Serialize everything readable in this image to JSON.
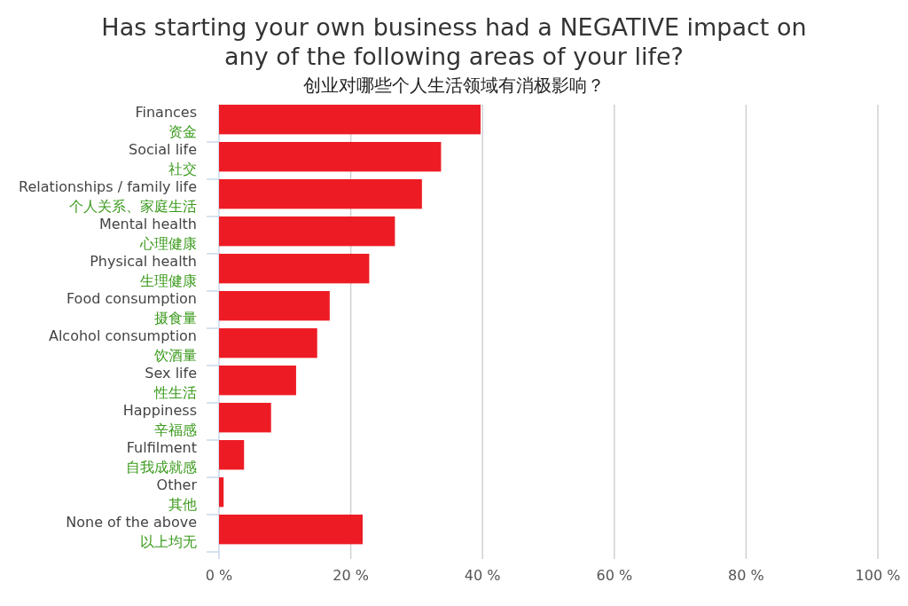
{
  "chart_data": {
    "type": "bar",
    "orientation": "horizontal",
    "title": "Has starting your own business had a NEGATIVE impact on\nany of the following areas of your life?",
    "subtitle": "创业对哪些个人生活领域有消极影响？",
    "categories": [
      "Finances\n资金",
      "Social life\n社交",
      "Relationships / family life\n个人关系、家庭生活",
      "Mental health\n心理健康",
      "Physical health\n生理健康",
      "Food consumption\n摄食量",
      "Alcohol consumption\n饮酒量",
      "Sex life\n性生活",
      "Happiness\n辛福感",
      "Fulfilment\n自我成就感",
      "Other\n其他",
      "None of the above\n以上均无"
    ],
    "values": [
      39.7,
      33.7,
      30.8,
      26.7,
      22.8,
      16.8,
      14.9,
      11.7,
      7.9,
      3.8,
      0.7,
      21.8
    ],
    "color": "#ed1c24",
    "xlim": [
      0,
      100
    ],
    "xticks": [
      {
        "value": 0,
        "label": "0 %"
      },
      {
        "value": 20,
        "label": "20 %"
      },
      {
        "value": 40,
        "label": "40 %"
      },
      {
        "value": 60,
        "label": "60 %"
      },
      {
        "value": 80,
        "label": "80 %"
      },
      {
        "value": 100,
        "label": "100 %"
      }
    ],
    "grid": "x"
  }
}
